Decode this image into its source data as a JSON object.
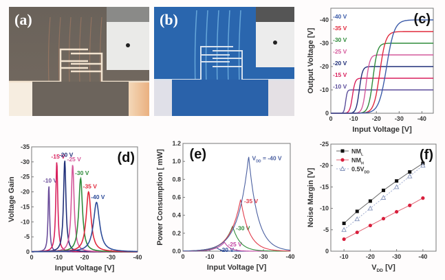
{
  "figure": {
    "photos": [
      {
        "label": "(a)",
        "description": "optical micrograph of transistor electrodes, brown substrate",
        "colors": {
          "background": "#6e665e",
          "lines": "#f3e4d0",
          "light": "#f6ede0",
          "tint": "#e8b48a"
        }
      },
      {
        "label": "(b)",
        "description": "fluorescence micrograph, blue emission",
        "colors": {
          "background": "#2766b0",
          "lines": "#d8e2ee",
          "light": "#e0e0e8",
          "glow": "#7fc7f0"
        }
      }
    ]
  },
  "chart_data": [
    {
      "id": "c",
      "panel_label": "(c)",
      "type": "line",
      "title": "",
      "xlabel": "Input Voltage [V]",
      "ylabel": "Output Voltage [V]",
      "xlim": [
        0,
        -45
      ],
      "ylim": [
        0,
        -45
      ],
      "xticks": [
        "0",
        "-10",
        "-20",
        "-30",
        "-40"
      ],
      "xtick_values": [
        0,
        -10,
        -20,
        -30,
        -40
      ],
      "yticks": [
        "0",
        "-10",
        "-20",
        "-30",
        "-40"
      ],
      "ytick_values": [
        0,
        -10,
        -20,
        -30,
        -40
      ],
      "series": [
        {
          "name": "-10 V",
          "vdd": -10,
          "switch_v": -6.5,
          "sharpness": 0.35,
          "color": "#5a4c9a"
        },
        {
          "name": "-15 V",
          "vdd": -15,
          "switch_v": -9.5,
          "sharpness": 0.6,
          "color": "#d81e5b"
        },
        {
          "name": "-20 V",
          "vdd": -20,
          "switch_v": -12.5,
          "sharpness": 0.7,
          "color": "#1f2e78"
        },
        {
          "name": "-25 V",
          "vdd": -25,
          "switch_v": -15.5,
          "sharpness": 0.8,
          "color": "#d4589a"
        },
        {
          "name": "-30 V",
          "vdd": -30,
          "switch_v": -18.5,
          "sharpness": 1.0,
          "color": "#2e8b3a"
        },
        {
          "name": "-35 V",
          "vdd": -35,
          "switch_v": -21.5,
          "sharpness": 1.3,
          "color": "#e0283c"
        },
        {
          "name": "-40 V",
          "vdd": -40,
          "switch_v": -24.5,
          "sharpness": 1.7,
          "color": "#3a5aa8"
        }
      ]
    },
    {
      "id": "d",
      "panel_label": "(d)",
      "type": "line",
      "title": "",
      "xlabel": "Input Voltage [V]",
      "ylabel": "Voltage Gain",
      "xlim": [
        0,
        -40
      ],
      "ylim": [
        0,
        -35
      ],
      "xticks": [
        "0",
        "-10",
        "-20",
        "-30",
        "-40"
      ],
      "xtick_values": [
        0,
        -10,
        -20,
        -30,
        -40
      ],
      "yticks": [
        "0",
        "-5",
        "-10",
        "-15",
        "-20",
        "-25",
        "-30",
        "-35"
      ],
      "ytick_values": [
        0,
        -5,
        -10,
        -15,
        -20,
        -25,
        -30,
        -35
      ],
      "series": [
        {
          "name": "-10 V",
          "peak_x": -6.5,
          "peak_gain": -22,
          "width": 0.35,
          "color": "#6a4c9a"
        },
        {
          "name": "-15 V",
          "peak_x": -9.5,
          "peak_gain": -30,
          "width": 0.45,
          "color": "#d81e5b"
        },
        {
          "name": "-20 V",
          "peak_x": -12.5,
          "peak_gain": -30.5,
          "width": 0.55,
          "color": "#1f2e78"
        },
        {
          "name": "-25 V",
          "peak_x": -15.5,
          "peak_gain": -29,
          "width": 0.65,
          "color": "#d4589a"
        },
        {
          "name": "-30 V",
          "peak_x": -18.5,
          "peak_gain": -24.5,
          "width": 0.85,
          "color": "#2e8b3a"
        },
        {
          "name": "-35 V",
          "peak_x": -21.5,
          "peak_gain": -20,
          "width": 1.1,
          "color": "#e0283c"
        },
        {
          "name": "-40 V",
          "peak_x": -24.5,
          "peak_gain": -16.5,
          "width": 1.4,
          "color": "#2b4a98"
        }
      ]
    },
    {
      "id": "e",
      "panel_label": "(e)",
      "type": "line",
      "title": "",
      "xlabel": "Input Voltage [V]",
      "ylabel": "Power Consumption [ mW]",
      "xlim": [
        0,
        -40
      ],
      "ylim": [
        0,
        1.2
      ],
      "xticks": [
        "0",
        "-10",
        "-20",
        "-30",
        "-40"
      ],
      "xtick_values": [
        0,
        -10,
        -20,
        -30,
        -40
      ],
      "yticks": [
        "0.0",
        "0.2",
        "0.4",
        "0.6",
        "0.8",
        "1.0",
        "1.2"
      ],
      "ytick_values": [
        0,
        0.2,
        0.4,
        0.6,
        0.8,
        1.0,
        1.2
      ],
      "series": [
        {
          "name": "-20 V",
          "label": "-20 V",
          "peak_x": -12.5,
          "peak_mw": 0.04,
          "rise": 2.5,
          "fall": 1.5,
          "color": "#2b4a98"
        },
        {
          "name": "-25 V",
          "label": "-25 V",
          "peak_x": -15.5,
          "peak_mw": 0.1,
          "rise": 3.0,
          "fall": 2.0,
          "color": "#c040a0"
        },
        {
          "name": "-30 V",
          "label": "-30 V",
          "peak_x": -18.5,
          "peak_mw": 0.28,
          "rise": 3.5,
          "fall": 2.8,
          "color": "#2e8b3a"
        },
        {
          "name": "-35 V",
          "label": "-35 V",
          "peak_x": -21.5,
          "peak_mw": 0.58,
          "rise": 3.8,
          "fall": 3.2,
          "color": "#e03a4a"
        },
        {
          "name": "-40 V",
          "label": "V_DD = -40 V",
          "peak_x": -24.5,
          "peak_mw": 1.06,
          "rise": 4.0,
          "fall": 3.4,
          "color": "#4a5fa0"
        }
      ]
    },
    {
      "id": "f",
      "panel_label": "(f)",
      "type": "line",
      "title": "",
      "xlabel": "V_DD [V]",
      "ylabel": "Noise Margin [V]",
      "xlim": [
        -5,
        -45
      ],
      "ylim": [
        0,
        -25
      ],
      "xticks": [
        "-10",
        "-20",
        "-30",
        "-40"
      ],
      "xtick_values": [
        -10,
        -20,
        -30,
        -40
      ],
      "yticks": [
        "0",
        "-5",
        "-10",
        "-15",
        "-20",
        "-25"
      ],
      "ytick_values": [
        0,
        -5,
        -10,
        -15,
        -20,
        -25
      ],
      "x": [
        -10,
        -15,
        -20,
        -25,
        -30,
        -35,
        -40
      ],
      "legend_position": "top-left",
      "series": [
        {
          "name": "NM_L",
          "marker": "square",
          "values": [
            -6.5,
            -9.3,
            -11.7,
            -14.2,
            -16.4,
            -18.5,
            -20.5
          ],
          "color": "#111111",
          "line_color": "#666666"
        },
        {
          "name": "NM_H",
          "marker": "circle",
          "values": [
            -2.8,
            -4.4,
            -6.0,
            -7.6,
            -9.2,
            -10.7,
            -12.4
          ],
          "color": "#d81e3c",
          "line_color": "#e06070"
        },
        {
          "name": "0.5V_DD",
          "marker": "triangle-open",
          "values": [
            -5.0,
            -7.5,
            -10.0,
            -12.5,
            -15.0,
            -17.5,
            -20.0
          ],
          "color": "#8090b8",
          "line_color": "#a0acd0",
          "dashed": true
        }
      ]
    }
  ]
}
